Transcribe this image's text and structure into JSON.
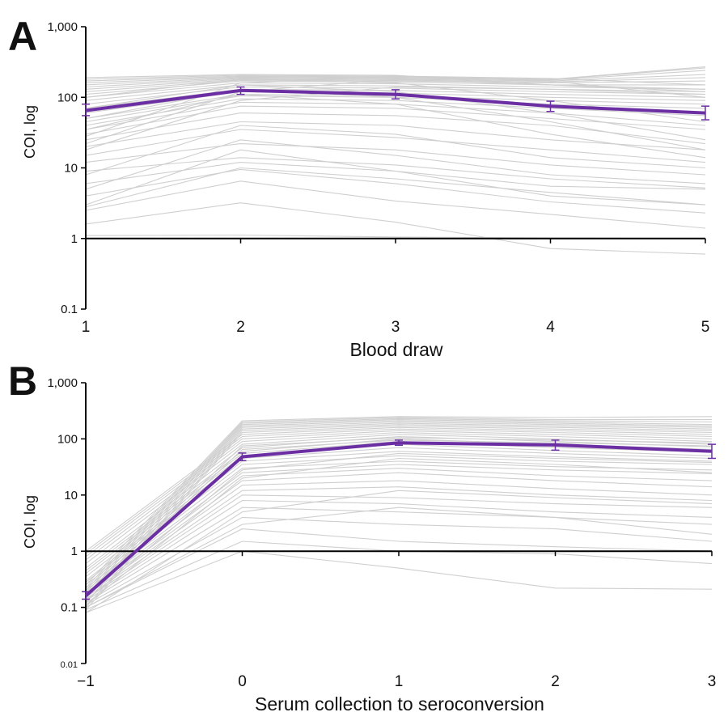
{
  "chart_data": [
    {
      "panel": "A",
      "type": "line",
      "scale_y": "log",
      "ylabel": "COI, log",
      "xlabel": "Blood draw",
      "categories": [
        "1",
        "2",
        "3",
        "4",
        "5"
      ],
      "ylim": [
        0.1,
        1000
      ],
      "yticks": [
        "0.1",
        "1",
        "10",
        "100",
        "1,000"
      ],
      "mean_color": "#6b2fa3",
      "individual_color": "#cfcfcf",
      "series": [
        {
          "values": [
            65,
            125,
            110,
            75,
            60
          ],
          "error": [
            [
              55,
              80
            ],
            [
              110,
              140
            ],
            [
              95,
              128
            ],
            [
              63,
              88
            ],
            [
              48,
              75
            ]
          ]
        }
      ],
      "individual": [
        [
          1.1,
          1.12,
          1.05,
          1.02,
          1.0
        ],
        [
          1.6,
          3.2,
          1.7,
          0.72,
          0.6
        ],
        [
          2.5,
          6.5,
          3.4,
          2.2,
          1.4
        ],
        [
          4,
          9.5,
          6,
          3.3,
          2.3
        ],
        [
          6,
          12,
          9,
          5.5,
          5
        ],
        [
          9,
          14,
          11,
          7,
          5.2
        ],
        [
          12,
          22,
          18,
          11,
          8
        ],
        [
          15,
          35,
          27,
          18,
          12
        ],
        [
          20,
          45,
          40,
          25,
          18
        ],
        [
          25,
          60,
          55,
          40,
          22
        ],
        [
          30,
          75,
          70,
          50,
          35
        ],
        [
          35,
          85,
          80,
          60,
          40
        ],
        [
          40,
          95,
          90,
          70,
          55
        ],
        [
          45,
          105,
          100,
          80,
          70
        ],
        [
          50,
          110,
          105,
          90,
          80
        ],
        [
          60,
          120,
          115,
          100,
          90
        ],
        [
          70,
          130,
          125,
          110,
          100
        ],
        [
          80,
          140,
          135,
          120,
          110
        ],
        [
          90,
          150,
          145,
          130,
          120
        ],
        [
          100,
          160,
          155,
          140,
          130
        ],
        [
          110,
          170,
          165,
          150,
          150
        ],
        [
          120,
          175,
          170,
          160,
          170
        ],
        [
          130,
          180,
          175,
          165,
          190
        ],
        [
          140,
          185,
          180,
          170,
          210
        ],
        [
          150,
          190,
          185,
          175,
          240
        ],
        [
          160,
          195,
          190,
          178,
          260
        ],
        [
          170,
          200,
          195,
          180,
          270
        ],
        [
          180,
          205,
          200,
          185,
          150
        ],
        [
          190,
          210,
          205,
          150,
          120
        ],
        [
          100,
          180,
          160,
          90,
          45
        ],
        [
          70,
          150,
          120,
          60,
          25
        ],
        [
          50,
          130,
          100,
          45,
          18
        ],
        [
          35,
          110,
          80,
          30,
          14
        ],
        [
          3,
          18,
          9,
          4,
          3
        ],
        [
          5,
          25,
          15,
          8,
          6
        ],
        [
          8,
          40,
          30,
          14,
          10
        ],
        [
          2.8,
          10,
          7,
          4.5,
          3
        ],
        [
          18,
          90,
          140,
          130,
          110
        ],
        [
          22,
          120,
          180,
          150,
          130
        ],
        [
          28,
          160,
          200,
          170,
          100
        ]
      ]
    },
    {
      "panel": "B",
      "type": "line",
      "scale_y": "log",
      "ylabel": "COI, log",
      "xlabel": "Serum collection to seroconversion",
      "categories": [
        "−1",
        "0",
        "1",
        "2",
        "3"
      ],
      "ylim": [
        0.01,
        1000
      ],
      "yticks": [
        "0.01",
        "0.1",
        "1",
        "10",
        "100",
        "1,000"
      ],
      "mean_color": "#6b2fa3",
      "individual_color": "#cfcfcf",
      "series": [
        {
          "values": [
            0.16,
            48,
            85,
            78,
            60
          ],
          "error": [
            [
              0.14,
              0.19
            ],
            [
              41,
              56
            ],
            [
              77,
              95
            ],
            [
              63,
              95
            ],
            [
              45,
              80
            ]
          ]
        }
      ],
      "individual": [
        [
          0.08,
          1.0,
          0.5,
          0.22,
          0.21
        ],
        [
          0.09,
          1.5,
          1.0,
          0.9,
          0.6
        ],
        [
          0.1,
          2.5,
          1.5,
          1.2,
          1.0
        ],
        [
          0.11,
          4,
          3,
          2.5,
          1.5
        ],
        [
          0.12,
          6,
          5,
          4,
          3
        ],
        [
          0.13,
          8,
          7,
          5,
          4
        ],
        [
          0.14,
          10,
          9,
          7,
          6
        ],
        [
          0.15,
          12,
          14,
          10,
          8
        ],
        [
          0.16,
          15,
          18,
          13,
          10
        ],
        [
          0.17,
          18,
          25,
          18,
          14
        ],
        [
          0.18,
          22,
          30,
          22,
          18
        ],
        [
          0.2,
          25,
          35,
          28,
          24
        ],
        [
          0.22,
          30,
          40,
          32,
          28
        ],
        [
          0.25,
          35,
          50,
          40,
          35
        ],
        [
          0.28,
          40,
          60,
          48,
          40
        ],
        [
          0.3,
          45,
          70,
          55,
          45
        ],
        [
          0.35,
          50,
          80,
          62,
          50
        ],
        [
          0.4,
          55,
          90,
          70,
          58
        ],
        [
          0.45,
          60,
          100,
          80,
          65
        ],
        [
          0.5,
          70,
          110,
          90,
          72
        ],
        [
          0.6,
          80,
          120,
          100,
          80
        ],
        [
          0.7,
          90,
          130,
          110,
          90
        ],
        [
          0.8,
          100,
          140,
          120,
          100
        ],
        [
          0.9,
          110,
          150,
          130,
          110
        ],
        [
          1.0,
          120,
          160,
          140,
          120
        ],
        [
          0.09,
          130,
          170,
          150,
          130
        ],
        [
          0.1,
          140,
          180,
          160,
          140
        ],
        [
          0.12,
          150,
          190,
          170,
          150
        ],
        [
          0.14,
          160,
          200,
          180,
          160
        ],
        [
          0.16,
          170,
          210,
          190,
          170
        ],
        [
          0.18,
          180,
          220,
          200,
          180
        ],
        [
          0.2,
          190,
          230,
          210,
          200
        ],
        [
          0.22,
          200,
          240,
          220,
          220
        ],
        [
          0.25,
          210,
          250,
          240,
          250
        ],
        [
          0.08,
          5,
          12,
          9,
          7
        ],
        [
          0.1,
          3,
          6,
          4,
          2
        ],
        [
          0.11,
          20,
          45,
          35,
          25
        ],
        [
          0.13,
          28,
          55,
          45,
          38
        ],
        [
          0.15,
          65,
          95,
          85,
          75
        ],
        [
          0.17,
          75,
          105,
          95,
          85
        ]
      ]
    }
  ],
  "panels": [
    {
      "letter": "A",
      "ylabel": "COI, log",
      "xlabel": "Blood draw"
    },
    {
      "letter": "B",
      "ylabel": "COI, log",
      "xlabel": "Serum collection to seroconversion"
    }
  ]
}
